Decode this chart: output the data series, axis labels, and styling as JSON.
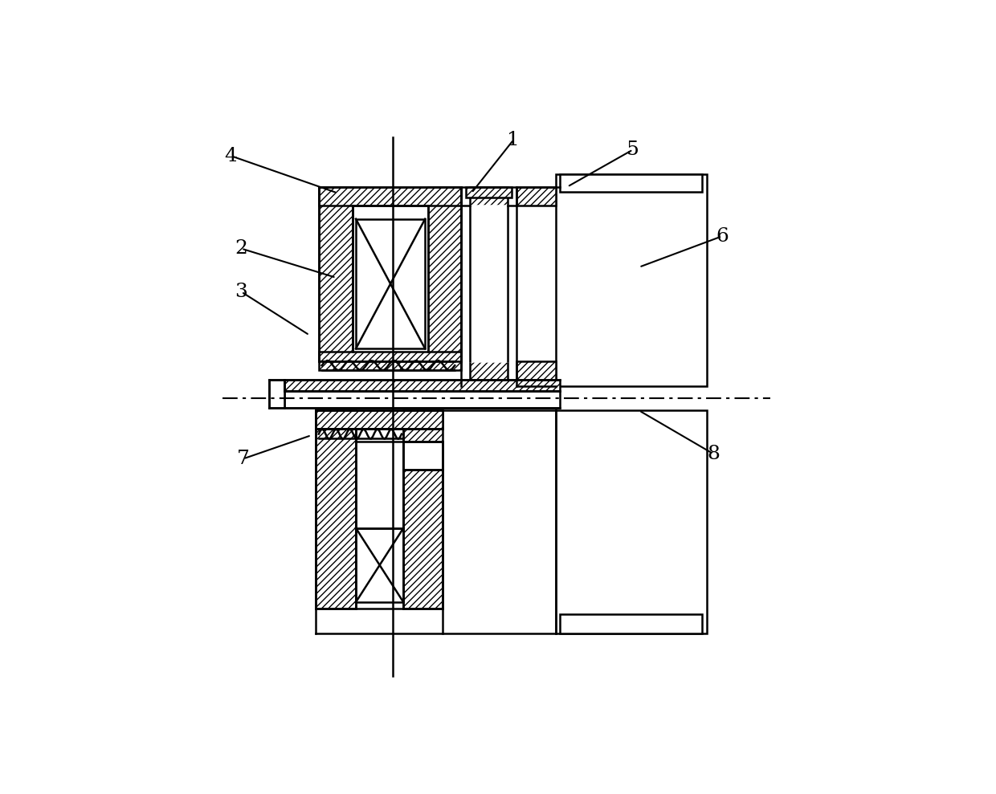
{
  "background_color": "#ffffff",
  "fig_width": 12.4,
  "fig_height": 9.89,
  "dpi": 100,
  "labels_data": [
    [
      "1",
      625,
      72,
      557,
      158
    ],
    [
      "2",
      185,
      248,
      338,
      295
    ],
    [
      "3",
      185,
      318,
      295,
      388
    ],
    [
      "4",
      168,
      98,
      340,
      158
    ],
    [
      "5",
      818,
      88,
      712,
      148
    ],
    [
      "6",
      962,
      228,
      828,
      278
    ],
    [
      "7",
      188,
      588,
      298,
      550
    ],
    [
      "8",
      948,
      580,
      828,
      510
    ]
  ]
}
